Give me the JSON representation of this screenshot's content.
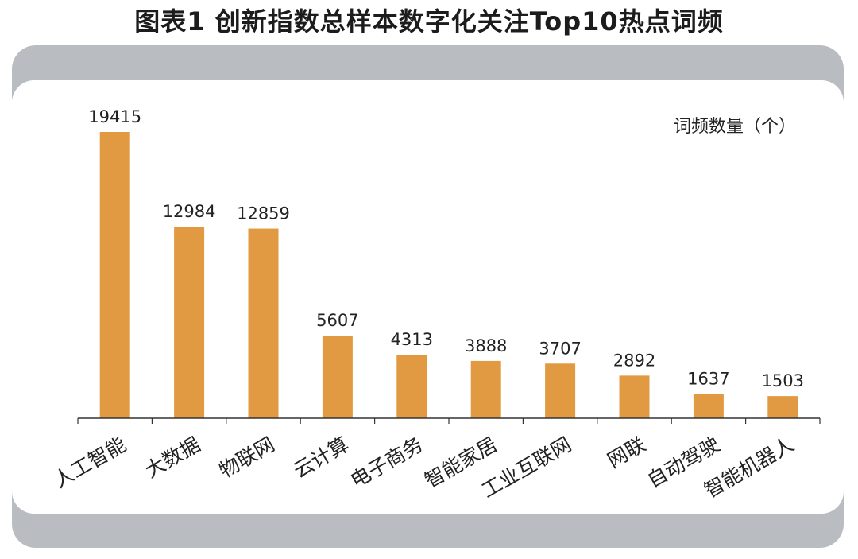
{
  "title": "图表1  创新指数总样本数字化关注Top10热点词频",
  "colors": {
    "bar": "#e19a42",
    "frame": "#b9bcc0",
    "panel": "#ffffff",
    "axis": "#333333",
    "text": "#222222"
  },
  "chart_data": {
    "type": "bar",
    "title": "图表1  创新指数总样本数字化关注Top10热点词频",
    "xlabel": "",
    "ylabel": "词频数量（个）",
    "ylim": [
      0,
      20000
    ],
    "grid": false,
    "categories": [
      "人工智能",
      "大数据",
      "物联网",
      "云计算",
      "电子商务",
      "智能家居",
      "工业互联网",
      "网联",
      "自动驾驶",
      "智能机器人"
    ],
    "values": [
      19415,
      12984,
      12859,
      5607,
      4313,
      3888,
      3707,
      2892,
      1637,
      1503
    ]
  }
}
